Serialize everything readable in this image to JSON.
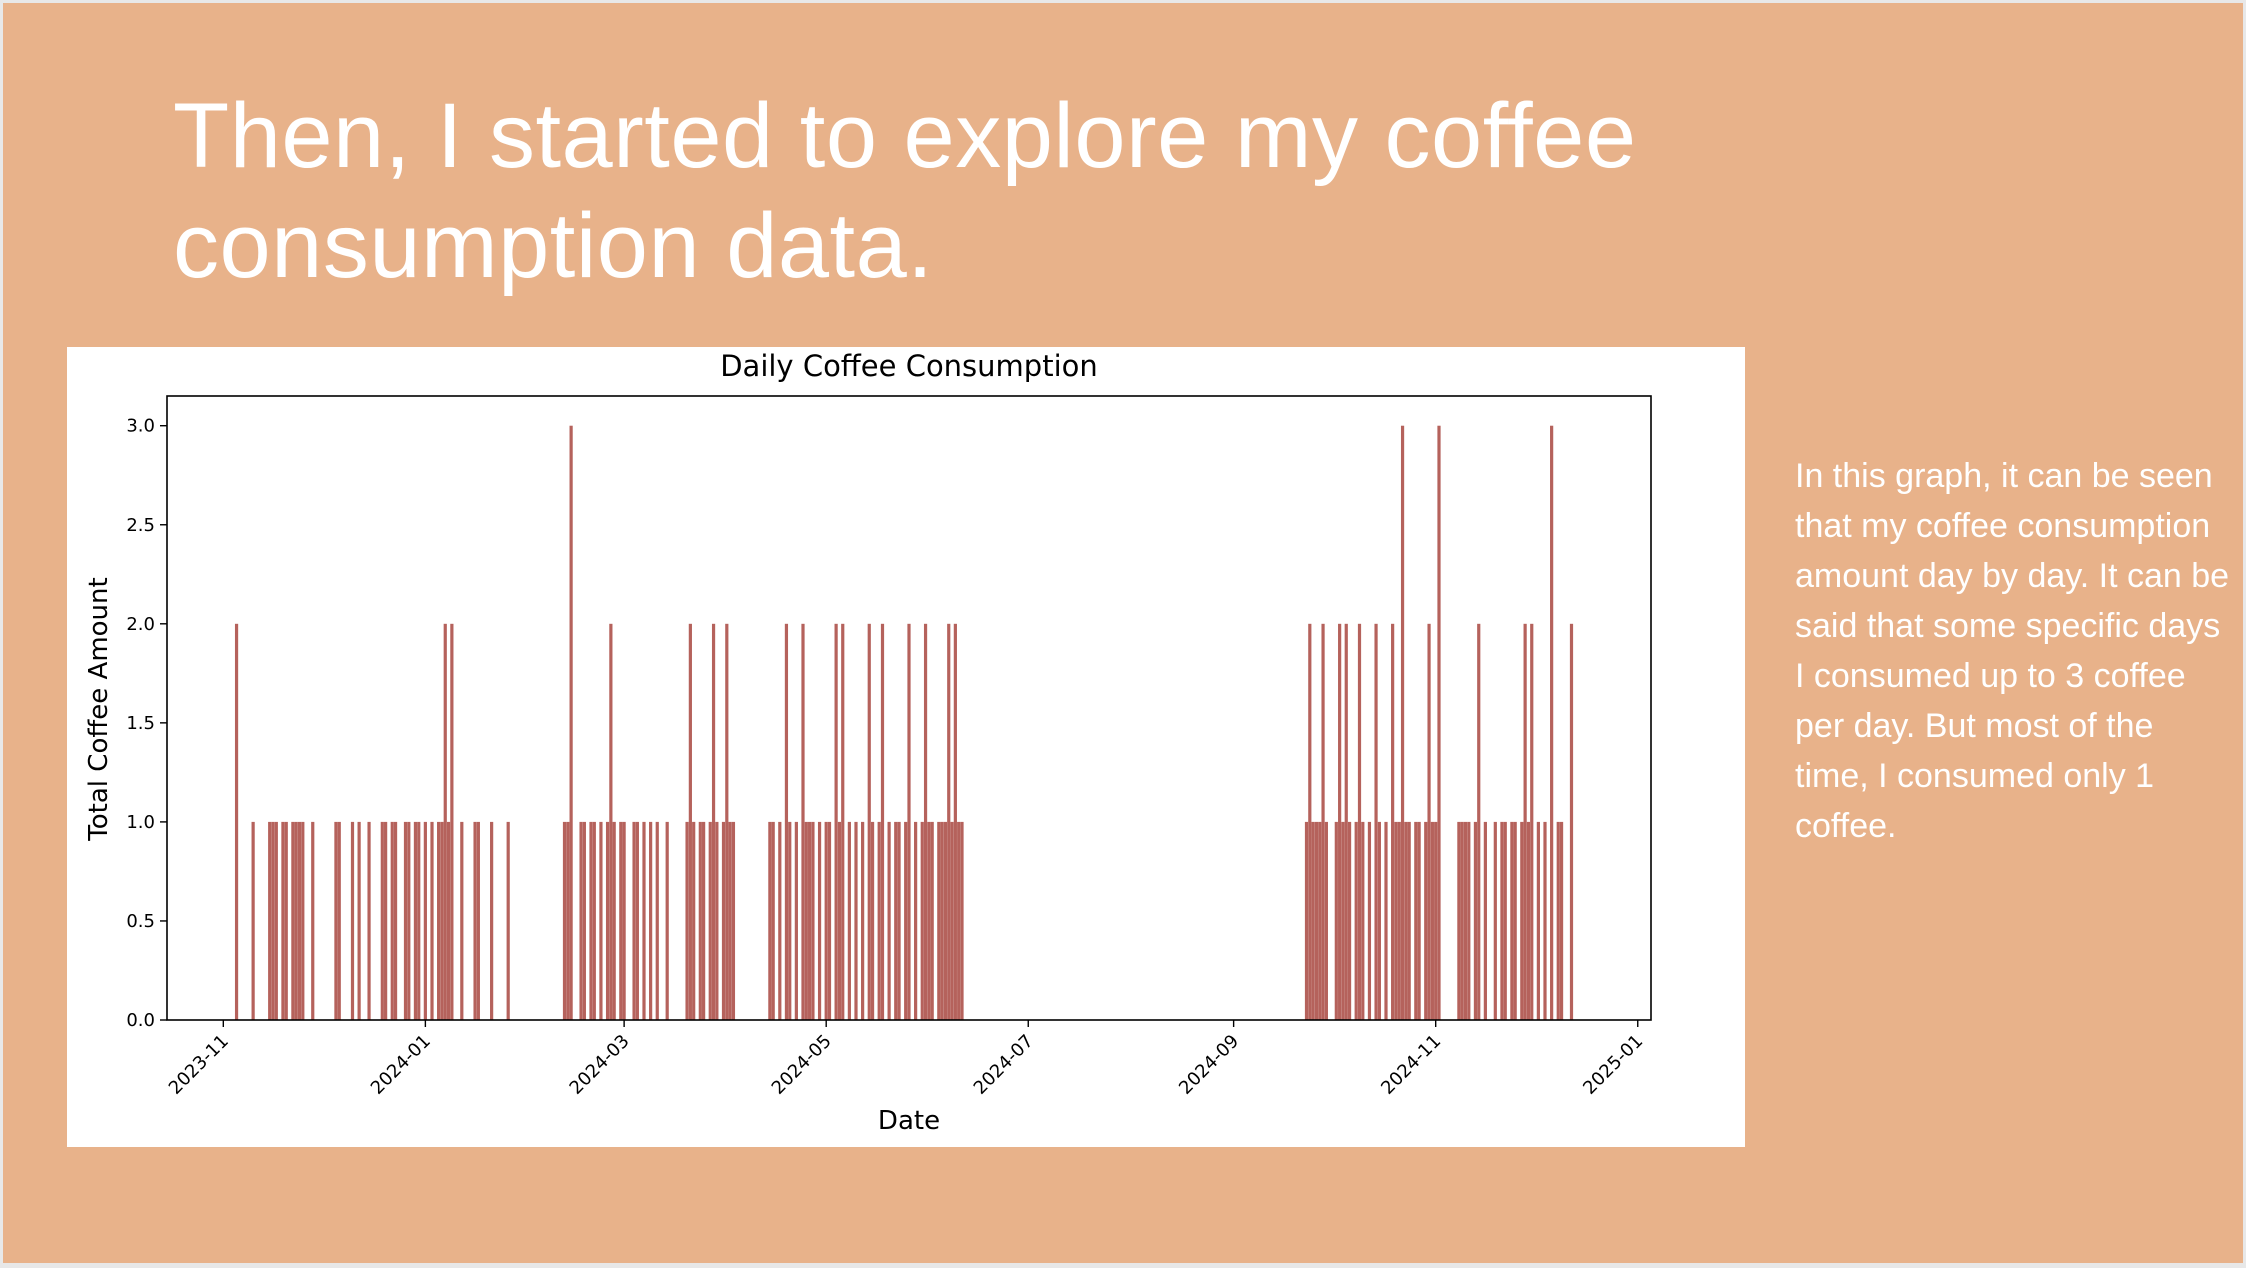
{
  "slide": {
    "title": "Then, I started to explore my coffee consumption data.",
    "note": "In this graph, it can be seen that my coffee consumption amount day by day. It can be said that some specific days I consumed up to 3 coffee per day. But most of the time, I consumed only 1 coffee.",
    "background_color": "#e8b28a"
  },
  "chart_data": {
    "type": "bar",
    "title": "Daily Coffee Consumption",
    "xlabel": "Date",
    "ylabel": "Total Coffee Amount",
    "bar_color": "#b5625c",
    "ylim": [
      0,
      3.15
    ],
    "xlim": [
      "2023-10-15",
      "2025-01-05"
    ],
    "yticks": [
      "0.0",
      "0.5",
      "1.0",
      "1.5",
      "2.0",
      "2.5",
      "3.0"
    ],
    "xticks": [
      "2023-11",
      "2024-01",
      "2024-03",
      "2024-05",
      "2024-07",
      "2024-09",
      "2024-11",
      "2025-01"
    ],
    "grid": false,
    "legend": "none",
    "points": [
      {
        "date": "2023-11-05",
        "value": 2
      },
      {
        "date": "2023-11-10",
        "value": 1
      },
      {
        "date": "2023-11-15",
        "value": 1
      },
      {
        "date": "2023-11-16",
        "value": 1
      },
      {
        "date": "2023-11-17",
        "value": 1
      },
      {
        "date": "2023-11-19",
        "value": 1
      },
      {
        "date": "2023-11-20",
        "value": 1
      },
      {
        "date": "2023-11-22",
        "value": 1
      },
      {
        "date": "2023-11-23",
        "value": 1
      },
      {
        "date": "2023-11-24",
        "value": 1
      },
      {
        "date": "2023-11-25",
        "value": 1
      },
      {
        "date": "2023-11-28",
        "value": 1
      },
      {
        "date": "2023-12-05",
        "value": 1
      },
      {
        "date": "2023-12-06",
        "value": 1
      },
      {
        "date": "2023-12-10",
        "value": 1
      },
      {
        "date": "2023-12-12",
        "value": 1
      },
      {
        "date": "2023-12-15",
        "value": 1
      },
      {
        "date": "2023-12-19",
        "value": 1
      },
      {
        "date": "2023-12-20",
        "value": 1
      },
      {
        "date": "2023-12-22",
        "value": 1
      },
      {
        "date": "2023-12-23",
        "value": 1
      },
      {
        "date": "2023-12-26",
        "value": 1
      },
      {
        "date": "2023-12-27",
        "value": 1
      },
      {
        "date": "2023-12-29",
        "value": 1
      },
      {
        "date": "2023-12-30",
        "value": 1
      },
      {
        "date": "2024-01-01",
        "value": 1
      },
      {
        "date": "2024-01-03",
        "value": 1
      },
      {
        "date": "2024-01-05",
        "value": 1
      },
      {
        "date": "2024-01-06",
        "value": 1
      },
      {
        "date": "2024-01-07",
        "value": 2
      },
      {
        "date": "2024-01-08",
        "value": 1
      },
      {
        "date": "2024-01-09",
        "value": 2
      },
      {
        "date": "2024-01-12",
        "value": 1
      },
      {
        "date": "2024-01-16",
        "value": 1
      },
      {
        "date": "2024-01-17",
        "value": 1
      },
      {
        "date": "2024-01-21",
        "value": 1
      },
      {
        "date": "2024-01-26",
        "value": 1
      },
      {
        "date": "2024-02-12",
        "value": 1
      },
      {
        "date": "2024-02-13",
        "value": 1
      },
      {
        "date": "2024-02-14",
        "value": 3
      },
      {
        "date": "2024-02-17",
        "value": 1
      },
      {
        "date": "2024-02-18",
        "value": 1
      },
      {
        "date": "2024-02-20",
        "value": 1
      },
      {
        "date": "2024-02-21",
        "value": 1
      },
      {
        "date": "2024-02-23",
        "value": 1
      },
      {
        "date": "2024-02-25",
        "value": 1
      },
      {
        "date": "2024-02-26",
        "value": 2
      },
      {
        "date": "2024-02-27",
        "value": 1
      },
      {
        "date": "2024-02-29",
        "value": 1
      },
      {
        "date": "2024-03-01",
        "value": 1
      },
      {
        "date": "2024-03-04",
        "value": 1
      },
      {
        "date": "2024-03-05",
        "value": 1
      },
      {
        "date": "2024-03-07",
        "value": 1
      },
      {
        "date": "2024-03-09",
        "value": 1
      },
      {
        "date": "2024-03-11",
        "value": 1
      },
      {
        "date": "2024-03-14",
        "value": 1
      },
      {
        "date": "2024-03-20",
        "value": 1
      },
      {
        "date": "2024-03-21",
        "value": 2
      },
      {
        "date": "2024-03-22",
        "value": 1
      },
      {
        "date": "2024-03-24",
        "value": 1
      },
      {
        "date": "2024-03-25",
        "value": 1
      },
      {
        "date": "2024-03-27",
        "value": 1
      },
      {
        "date": "2024-03-28",
        "value": 2
      },
      {
        "date": "2024-03-29",
        "value": 1
      },
      {
        "date": "2024-03-31",
        "value": 1
      },
      {
        "date": "2024-04-01",
        "value": 2
      },
      {
        "date": "2024-04-02",
        "value": 1
      },
      {
        "date": "2024-04-03",
        "value": 1
      },
      {
        "date": "2024-04-14",
        "value": 1
      },
      {
        "date": "2024-04-15",
        "value": 1
      },
      {
        "date": "2024-04-17",
        "value": 1
      },
      {
        "date": "2024-04-19",
        "value": 2
      },
      {
        "date": "2024-04-20",
        "value": 1
      },
      {
        "date": "2024-04-22",
        "value": 1
      },
      {
        "date": "2024-04-24",
        "value": 2
      },
      {
        "date": "2024-04-25",
        "value": 1
      },
      {
        "date": "2024-04-26",
        "value": 1
      },
      {
        "date": "2024-04-27",
        "value": 1
      },
      {
        "date": "2024-04-29",
        "value": 1
      },
      {
        "date": "2024-05-01",
        "value": 1
      },
      {
        "date": "2024-05-02",
        "value": 1
      },
      {
        "date": "2024-05-04",
        "value": 2
      },
      {
        "date": "2024-05-05",
        "value": 1
      },
      {
        "date": "2024-05-06",
        "value": 2
      },
      {
        "date": "2024-05-08",
        "value": 1
      },
      {
        "date": "2024-05-10",
        "value": 1
      },
      {
        "date": "2024-05-12",
        "value": 1
      },
      {
        "date": "2024-05-14",
        "value": 2
      },
      {
        "date": "2024-05-15",
        "value": 1
      },
      {
        "date": "2024-05-17",
        "value": 1
      },
      {
        "date": "2024-05-18",
        "value": 2
      },
      {
        "date": "2024-05-20",
        "value": 1
      },
      {
        "date": "2024-05-22",
        "value": 1
      },
      {
        "date": "2024-05-23",
        "value": 1
      },
      {
        "date": "2024-05-25",
        "value": 1
      },
      {
        "date": "2024-05-26",
        "value": 2
      },
      {
        "date": "2024-05-28",
        "value": 1
      },
      {
        "date": "2024-05-30",
        "value": 1
      },
      {
        "date": "2024-05-31",
        "value": 2
      },
      {
        "date": "2024-06-01",
        "value": 1
      },
      {
        "date": "2024-06-02",
        "value": 1
      },
      {
        "date": "2024-06-04",
        "value": 1
      },
      {
        "date": "2024-06-05",
        "value": 1
      },
      {
        "date": "2024-06-06",
        "value": 1
      },
      {
        "date": "2024-06-07",
        "value": 2
      },
      {
        "date": "2024-06-08",
        "value": 1
      },
      {
        "date": "2024-06-09",
        "value": 2
      },
      {
        "date": "2024-06-10",
        "value": 1
      },
      {
        "date": "2024-06-11",
        "value": 1
      },
      {
        "date": "2024-09-23",
        "value": 1
      },
      {
        "date": "2024-09-24",
        "value": 2
      },
      {
        "date": "2024-09-25",
        "value": 1
      },
      {
        "date": "2024-09-26",
        "value": 1
      },
      {
        "date": "2024-09-27",
        "value": 1
      },
      {
        "date": "2024-09-28",
        "value": 2
      },
      {
        "date": "2024-09-29",
        "value": 1
      },
      {
        "date": "2024-10-02",
        "value": 1
      },
      {
        "date": "2024-10-03",
        "value": 2
      },
      {
        "date": "2024-10-04",
        "value": 1
      },
      {
        "date": "2024-10-05",
        "value": 2
      },
      {
        "date": "2024-10-06",
        "value": 1
      },
      {
        "date": "2024-10-08",
        "value": 1
      },
      {
        "date": "2024-10-09",
        "value": 2
      },
      {
        "date": "2024-10-10",
        "value": 1
      },
      {
        "date": "2024-10-12",
        "value": 1
      },
      {
        "date": "2024-10-14",
        "value": 2
      },
      {
        "date": "2024-10-15",
        "value": 1
      },
      {
        "date": "2024-10-17",
        "value": 1
      },
      {
        "date": "2024-10-19",
        "value": 2
      },
      {
        "date": "2024-10-20",
        "value": 1
      },
      {
        "date": "2024-10-21",
        "value": 1
      },
      {
        "date": "2024-10-22",
        "value": 3
      },
      {
        "date": "2024-10-23",
        "value": 1
      },
      {
        "date": "2024-10-24",
        "value": 1
      },
      {
        "date": "2024-10-26",
        "value": 1
      },
      {
        "date": "2024-10-27",
        "value": 1
      },
      {
        "date": "2024-10-29",
        "value": 1
      },
      {
        "date": "2024-10-30",
        "value": 2
      },
      {
        "date": "2024-10-31",
        "value": 1
      },
      {
        "date": "2024-11-01",
        "value": 1
      },
      {
        "date": "2024-11-02",
        "value": 3
      },
      {
        "date": "2024-11-08",
        "value": 1
      },
      {
        "date": "2024-11-09",
        "value": 1
      },
      {
        "date": "2024-11-10",
        "value": 1
      },
      {
        "date": "2024-11-11",
        "value": 1
      },
      {
        "date": "2024-11-13",
        "value": 1
      },
      {
        "date": "2024-11-14",
        "value": 2
      },
      {
        "date": "2024-11-16",
        "value": 1
      },
      {
        "date": "2024-11-19",
        "value": 1
      },
      {
        "date": "2024-11-21",
        "value": 1
      },
      {
        "date": "2024-11-22",
        "value": 1
      },
      {
        "date": "2024-11-24",
        "value": 1
      },
      {
        "date": "2024-11-25",
        "value": 1
      },
      {
        "date": "2024-11-27",
        "value": 1
      },
      {
        "date": "2024-11-28",
        "value": 2
      },
      {
        "date": "2024-11-29",
        "value": 1
      },
      {
        "date": "2024-11-30",
        "value": 2
      },
      {
        "date": "2024-12-02",
        "value": 1
      },
      {
        "date": "2024-12-04",
        "value": 1
      },
      {
        "date": "2024-12-06",
        "value": 3
      },
      {
        "date": "2024-12-08",
        "value": 1
      },
      {
        "date": "2024-12-09",
        "value": 1
      },
      {
        "date": "2024-12-12",
        "value": 2
      }
    ]
  }
}
